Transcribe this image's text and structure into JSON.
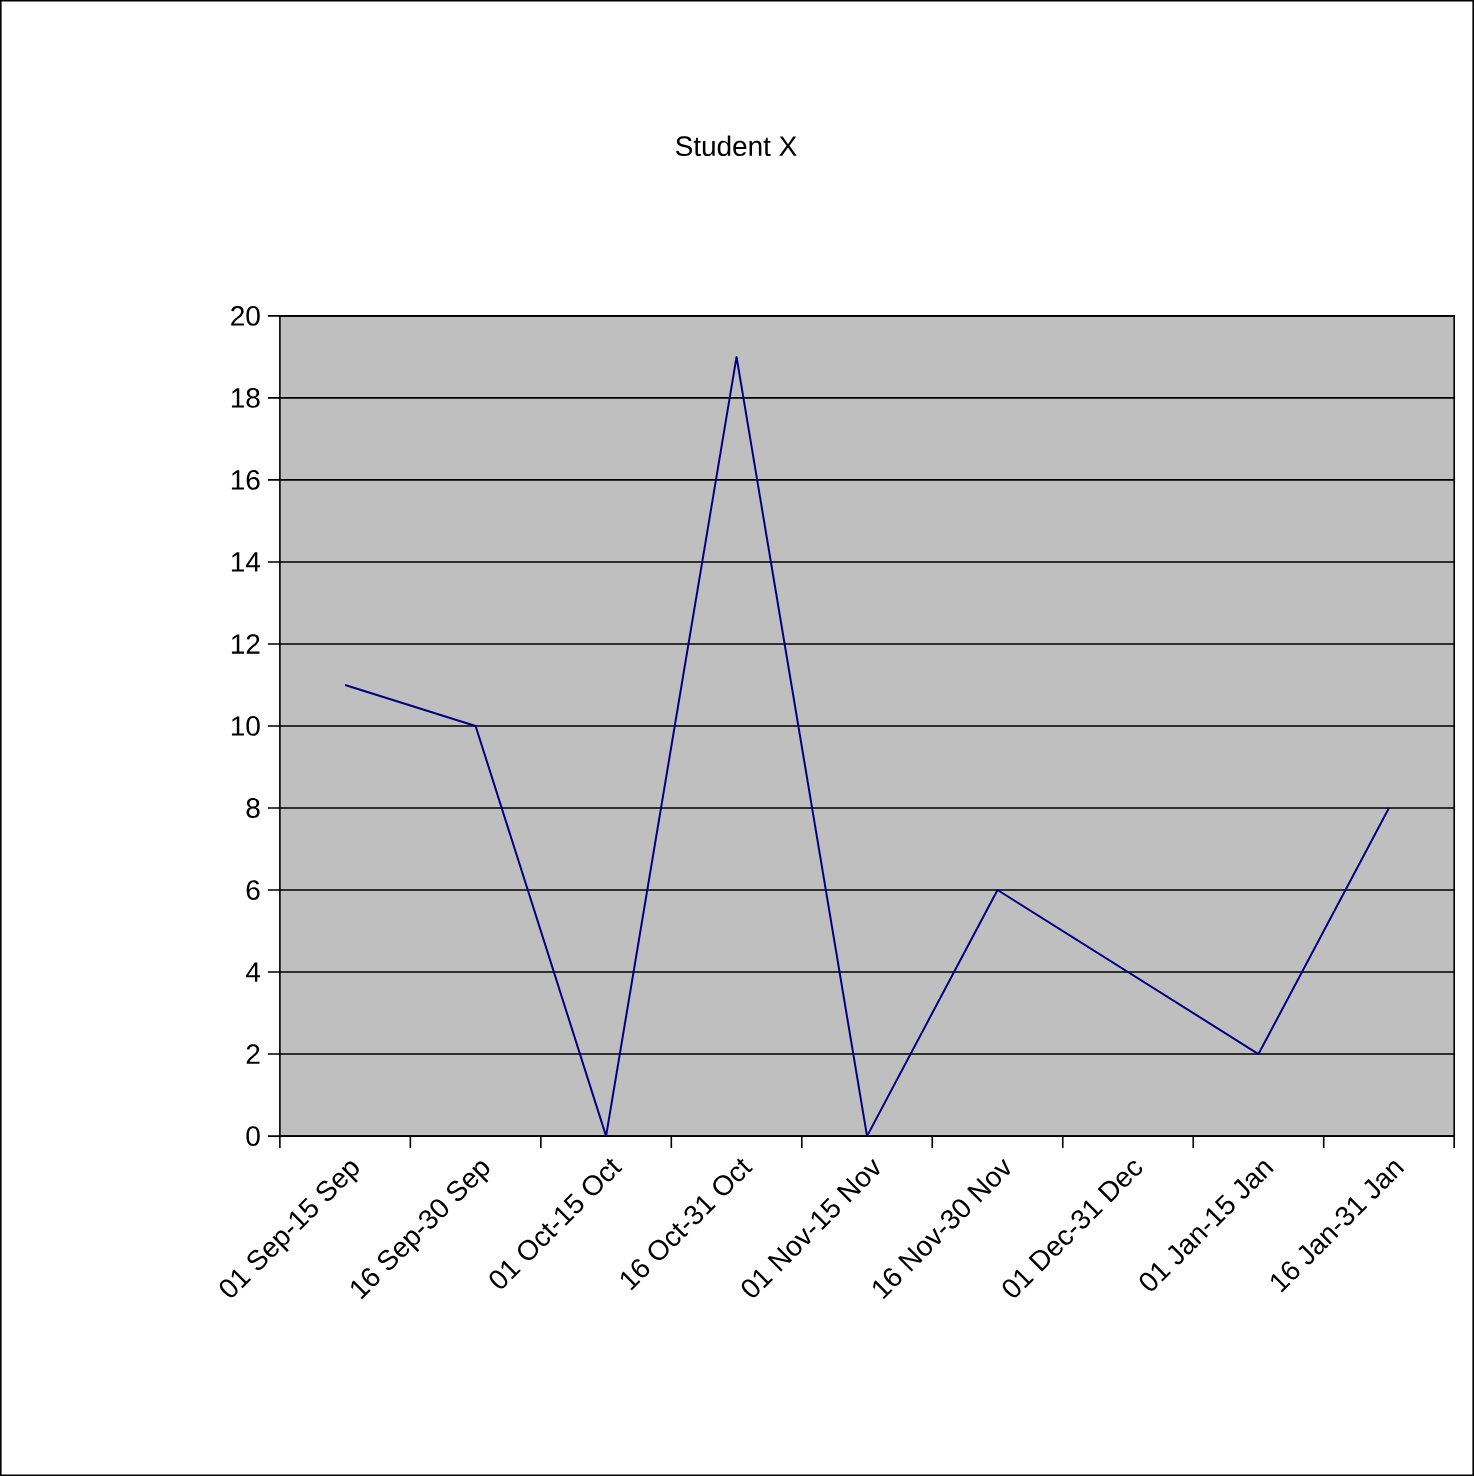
{
  "chart_data": {
    "type": "line",
    "title": "Student X",
    "categories": [
      "01 Sep-15 Sep",
      "16 Sep-30 Sep",
      "01 Oct-15 Oct",
      "16 Oct-31 Oct",
      "01 Nov-15 Nov",
      "16 Nov-30 Nov",
      "01 Dec-31 Dec",
      "01 Jan-15 Jan",
      "16 Jan-31 Jan"
    ],
    "series": [
      {
        "color": "#000080",
        "values": [
          11,
          10,
          0,
          19,
          0,
          6,
          4,
          2,
          8
        ]
      }
    ],
    "ylim": [
      0,
      20
    ],
    "yticks": [
      0,
      2,
      4,
      6,
      8,
      10,
      12,
      14,
      16,
      18,
      20
    ],
    "grid": "y",
    "marker": "none"
  }
}
